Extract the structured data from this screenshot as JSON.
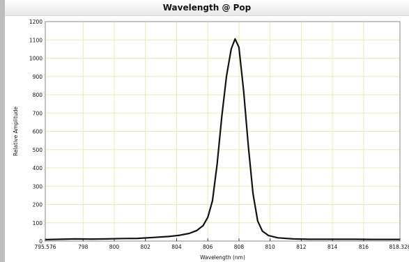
{
  "window": {
    "title": "Wavelength @ Pop"
  },
  "chart_data": {
    "type": "line",
    "title": "Wavelength @ Pop",
    "xlabel": "Wavelength (nm)",
    "ylabel": "Relative Amplitude",
    "xlim": [
      795.576,
      818.328
    ],
    "ylim": [
      0,
      1200
    ],
    "grid": true,
    "x_ticks": [
      {
        "value": 795.576,
        "label": "795.576"
      },
      {
        "value": 798,
        "label": "798"
      },
      {
        "value": 800,
        "label": "800"
      },
      {
        "value": 802,
        "label": "802"
      },
      {
        "value": 804,
        "label": "804"
      },
      {
        "value": 806,
        "label": "806"
      },
      {
        "value": 808,
        "label": "808"
      },
      {
        "value": 810,
        "label": "810"
      },
      {
        "value": 812,
        "label": "812"
      },
      {
        "value": 814,
        "label": "814"
      },
      {
        "value": 816,
        "label": "816"
      },
      {
        "value": 818.328,
        "label": "818.328"
      }
    ],
    "y_ticks": [
      0,
      100,
      200,
      300,
      400,
      500,
      600,
      700,
      800,
      900,
      1000,
      1100,
      1200
    ],
    "line_color": "#111111",
    "grid_color": "#e8ecb8",
    "series": [
      {
        "x": [
          795.6,
          796.5,
          797.5,
          798.5,
          799.5,
          800.5,
          801.5,
          802.5,
          803.5,
          804.2,
          804.8,
          805.3,
          805.7,
          806.0,
          806.3,
          806.6,
          806.9,
          807.2,
          807.5,
          807.75,
          808.0,
          808.3,
          808.6,
          808.9,
          809.2,
          809.5,
          809.9,
          810.5,
          811.5,
          812.5,
          813.5,
          814.5,
          815.5,
          816.5,
          817.5,
          818.3
        ],
        "y": [
          8,
          10,
          12,
          11,
          12,
          14,
          15,
          20,
          25,
          32,
          42,
          58,
          85,
          130,
          220,
          420,
          680,
          900,
          1050,
          1105,
          1060,
          820,
          520,
          260,
          110,
          55,
          30,
          18,
          12,
          10,
          10,
          10,
          10,
          9,
          9,
          9
        ]
      }
    ]
  }
}
